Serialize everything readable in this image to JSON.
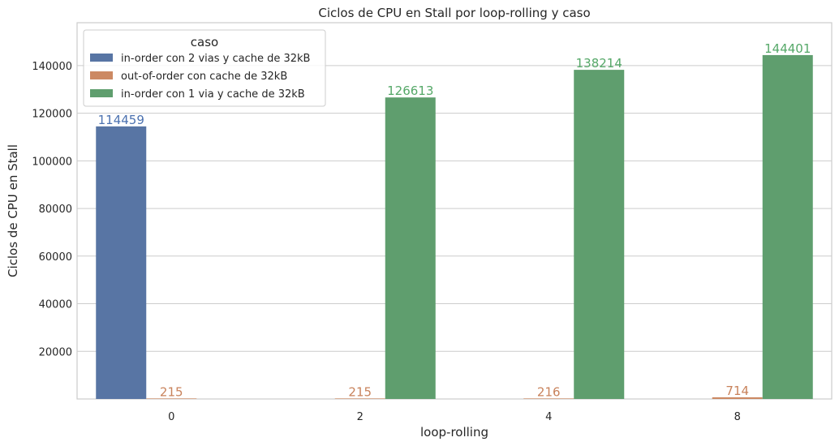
{
  "chart_data": {
    "type": "bar",
    "title": "Ciclos de CPU en Stall por loop-rolling y caso",
    "xlabel": "loop-rolling",
    "ylabel": "Ciclos de CPU en Stall",
    "categories": [
      "0",
      "2",
      "4",
      "8"
    ],
    "ylim": [
      0,
      158000
    ],
    "yticks": [
      20000,
      40000,
      60000,
      80000,
      100000,
      120000,
      140000
    ],
    "grid": true,
    "legend": {
      "title": "caso",
      "placement": "top-left"
    },
    "series": [
      {
        "name": "in-order con 2 vias y cache de 32kB",
        "color": "#5875a4",
        "label_color": "#4c72b0",
        "values": [
          114459,
          null,
          null,
          null
        ],
        "labels": [
          "114459",
          "",
          "",
          ""
        ]
      },
      {
        "name": "out-of-order con cache de 32kB",
        "color": "#cc8963",
        "label_color": "#c8825b",
        "values": [
          215,
          215,
          216,
          714
        ],
        "labels": [
          "215",
          "215",
          "216",
          "714"
        ]
      },
      {
        "name": "in-order con 1 via y cache de 32kB",
        "color": "#5f9e6e",
        "label_color": "#55a868",
        "values": [
          null,
          126613,
          138214,
          144401
        ],
        "labels": [
          "",
          "126613",
          "138214",
          "144401"
        ]
      }
    ]
  }
}
